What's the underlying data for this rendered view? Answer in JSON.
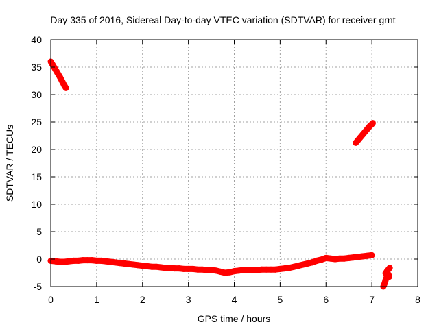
{
  "chart_data": {
    "type": "scatter",
    "title": "Day 335 of 2016, Sidereal Day-to-day VTEC variation (SDTVAR) for receiver grnt",
    "xlabel": "GPS time / hours",
    "ylabel": "SDTVAR / TECUs",
    "xlim": [
      0,
      8
    ],
    "ylim": [
      -5,
      40
    ],
    "xticks": [
      0,
      1,
      2,
      3,
      4,
      5,
      6,
      7,
      8
    ],
    "yticks": [
      -5,
      0,
      5,
      10,
      15,
      20,
      25,
      30,
      35,
      40
    ],
    "grid": true,
    "marker": "plus",
    "color": "#ff0000",
    "series": [
      {
        "x": [
          0.0,
          0.05,
          0.1,
          0.15,
          0.2,
          0.25,
          0.3,
          0.33
        ],
        "y": [
          36.0,
          35.3,
          34.6,
          33.9,
          33.2,
          32.4,
          31.6,
          31.2
        ]
      },
      {
        "x": [
          0.0,
          0.1,
          0.2,
          0.3,
          0.4,
          0.5,
          0.6,
          0.7,
          0.8,
          0.9,
          1.0,
          1.1,
          1.2,
          1.3,
          1.4,
          1.5,
          1.6,
          1.7,
          1.8,
          1.9,
          2.0,
          2.1,
          2.2,
          2.3,
          2.4,
          2.5,
          2.6,
          2.7,
          2.8,
          2.9,
          3.0,
          3.1,
          3.2,
          3.3,
          3.4,
          3.5,
          3.6,
          3.7,
          3.8,
          3.9,
          4.0,
          4.1,
          4.2,
          4.3,
          4.4,
          4.5,
          4.6,
          4.7,
          4.8,
          4.9,
          5.0,
          5.1,
          5.2,
          5.3,
          5.4,
          5.5,
          5.6,
          5.7,
          5.8,
          5.9,
          6.0,
          6.1,
          6.2,
          6.3,
          6.4,
          6.5,
          6.6,
          6.7,
          6.8,
          6.9,
          7.0
        ],
        "y": [
          -0.3,
          -0.4,
          -0.5,
          -0.5,
          -0.4,
          -0.3,
          -0.3,
          -0.2,
          -0.2,
          -0.2,
          -0.3,
          -0.3,
          -0.4,
          -0.5,
          -0.6,
          -0.7,
          -0.8,
          -0.9,
          -1.0,
          -1.1,
          -1.2,
          -1.3,
          -1.4,
          -1.4,
          -1.5,
          -1.6,
          -1.6,
          -1.7,
          -1.7,
          -1.8,
          -1.8,
          -1.8,
          -1.9,
          -1.9,
          -2.0,
          -2.0,
          -2.1,
          -2.3,
          -2.5,
          -2.4,
          -2.2,
          -2.1,
          -2.0,
          -2.0,
          -2.0,
          -2.0,
          -1.9,
          -1.9,
          -1.9,
          -1.9,
          -1.8,
          -1.7,
          -1.6,
          -1.4,
          -1.2,
          -1.0,
          -0.8,
          -0.6,
          -0.3,
          -0.1,
          0.2,
          0.1,
          0.0,
          0.1,
          0.1,
          0.2,
          0.3,
          0.4,
          0.5,
          0.6,
          0.7
        ]
      },
      {
        "x": [
          6.65,
          6.7,
          6.75,
          6.8,
          6.85,
          6.9,
          6.95,
          7.0,
          7.02
        ],
        "y": [
          21.2,
          21.7,
          22.2,
          22.7,
          23.2,
          23.7,
          24.2,
          24.6,
          24.8
        ]
      },
      {
        "x": [
          7.25,
          7.28,
          7.3,
          7.32,
          7.34,
          7.36,
          7.38,
          7.3,
          7.33,
          7.36,
          7.39
        ],
        "y": [
          -5.0,
          -4.4,
          -3.8,
          -3.4,
          -3.0,
          -2.8,
          -3.2,
          -2.6,
          -2.2,
          -1.9,
          -1.6
        ]
      }
    ]
  }
}
